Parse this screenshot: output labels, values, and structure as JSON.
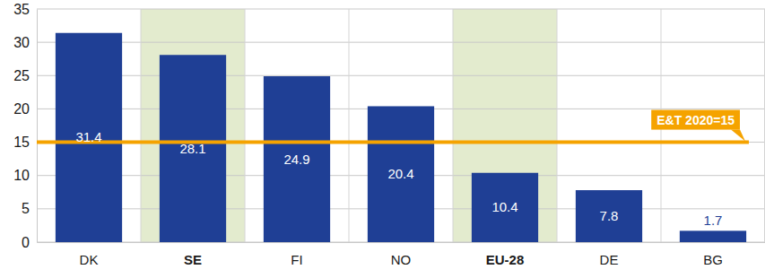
{
  "chart_data": {
    "type": "bar",
    "categories": [
      "DK",
      "SE",
      "FI",
      "NO",
      "EU-28",
      "DE",
      "BG"
    ],
    "values": [
      31.4,
      28.1,
      24.9,
      20.4,
      10.4,
      7.8,
      1.7
    ],
    "color": "#1f3f95",
    "highlighted": [
      "SE",
      "EU-28"
    ],
    "ylim": [
      0,
      35
    ],
    "yticks": [
      0,
      5,
      10,
      15,
      20,
      25,
      30,
      35
    ],
    "grid": true,
    "data_labels": true,
    "reference_line": {
      "value": 15,
      "label": "E&T 2020=15",
      "color": "#f5a300"
    }
  }
}
